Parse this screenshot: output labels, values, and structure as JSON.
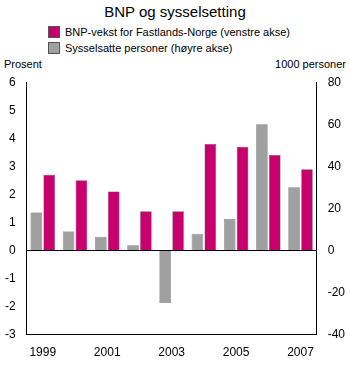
{
  "chart_data": {
    "type": "bar",
    "title": "BNP og sysselsetting",
    "y_label": "Prosent",
    "y2_label": "1000 personer",
    "categories": [
      "1999",
      null,
      "2001",
      null,
      "2003",
      null,
      "2005",
      null,
      "2007"
    ],
    "series": [
      {
        "name": "BNP-vekst for Fastlands-Norge (venstre akse)",
        "color": "#c8006e",
        "values": [
          2.7,
          2.5,
          2.1,
          1.4,
          1.4,
          3.8,
          3.7,
          3.4,
          2.9
        ]
      },
      {
        "name": "Sysselsatte personer (høyre akse)",
        "color": "#a0a0a0",
        "axis": "y2",
        "values": [
          18,
          9,
          6.5,
          2.5,
          -25,
          8,
          15,
          60,
          30
        ]
      }
    ],
    "ylim": [
      -3,
      6
    ],
    "yticks": [
      -3,
      -2,
      -1,
      0,
      1,
      2,
      3,
      4,
      5,
      6
    ],
    "y2lim": [
      -40,
      80
    ],
    "y2ticks": [
      -40,
      -20,
      0,
      20,
      40,
      60,
      80
    ],
    "grid": false,
    "legend": "top"
  }
}
